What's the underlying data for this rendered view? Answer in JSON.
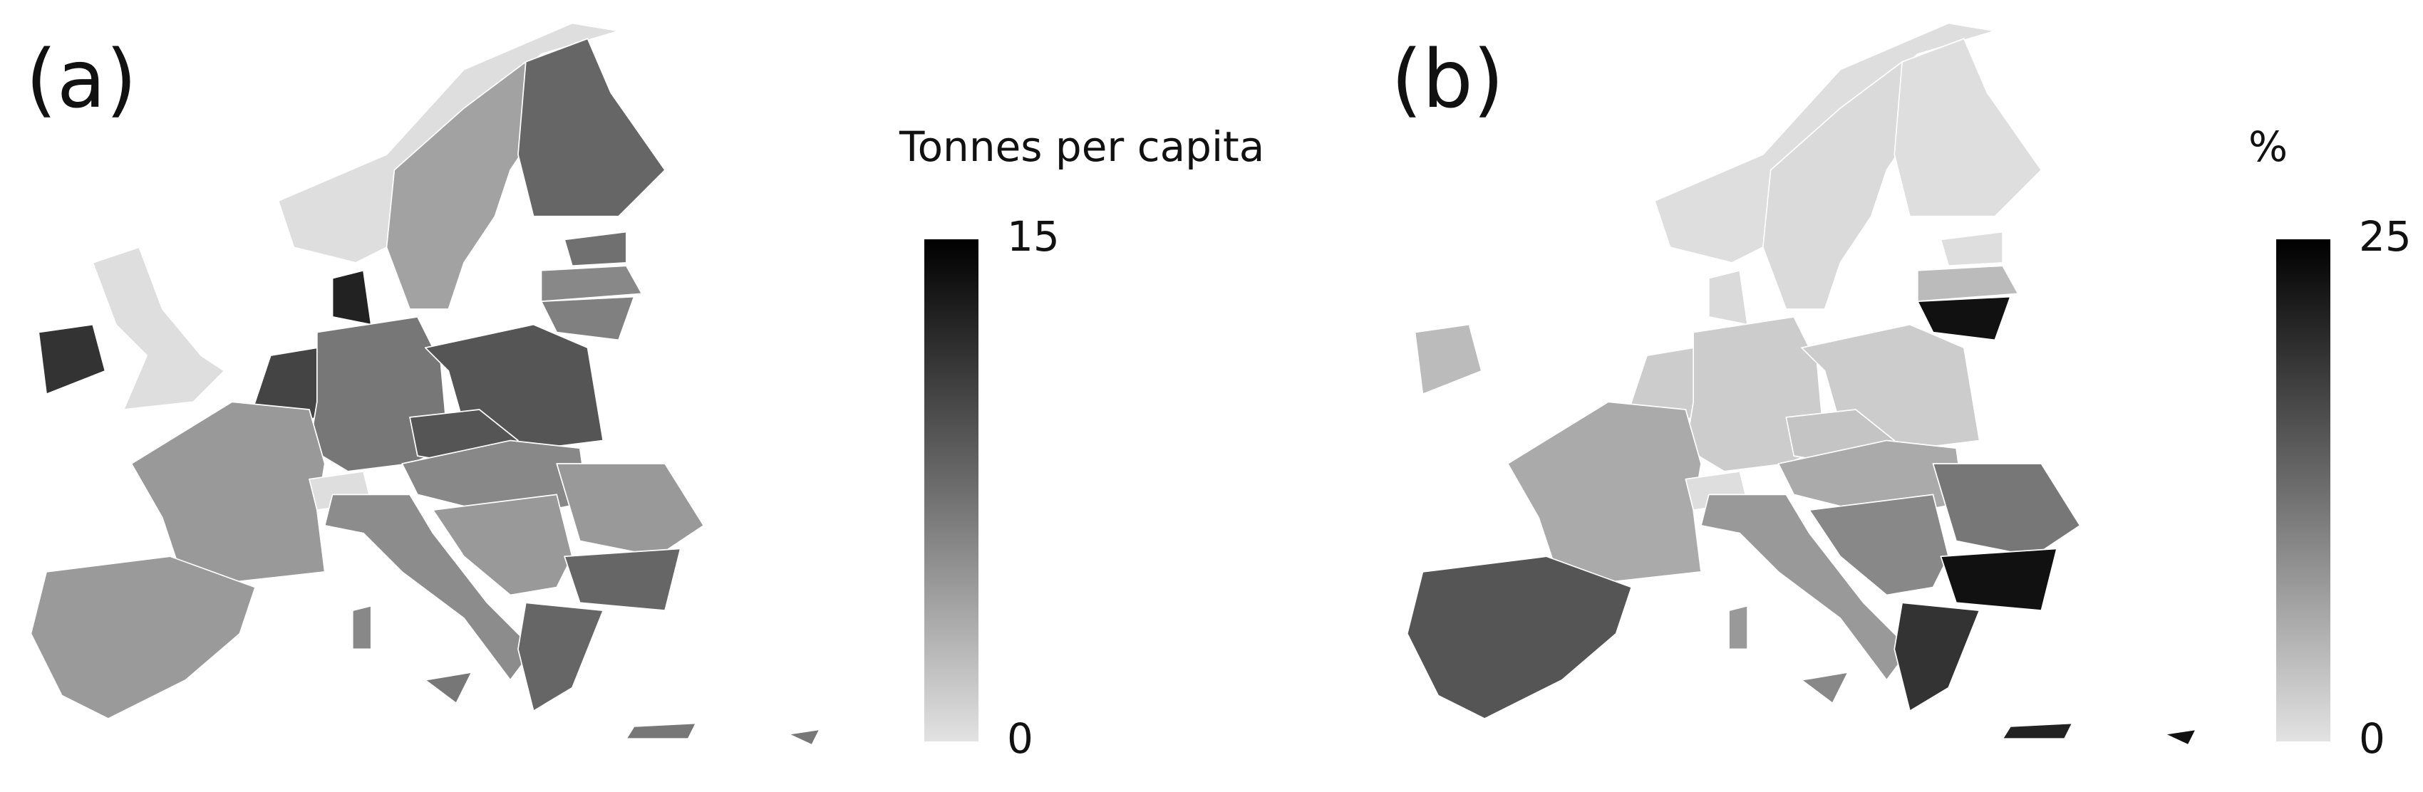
{
  "panels": [
    {
      "label": "(a)",
      "colorbar": {
        "title": "Tonnes per capita",
        "ticks": [
          0,
          15
        ]
      }
    },
    {
      "label": "(b)",
      "colorbar": {
        "title": "%",
        "ticks": [
          0,
          25
        ]
      }
    }
  ]
}
